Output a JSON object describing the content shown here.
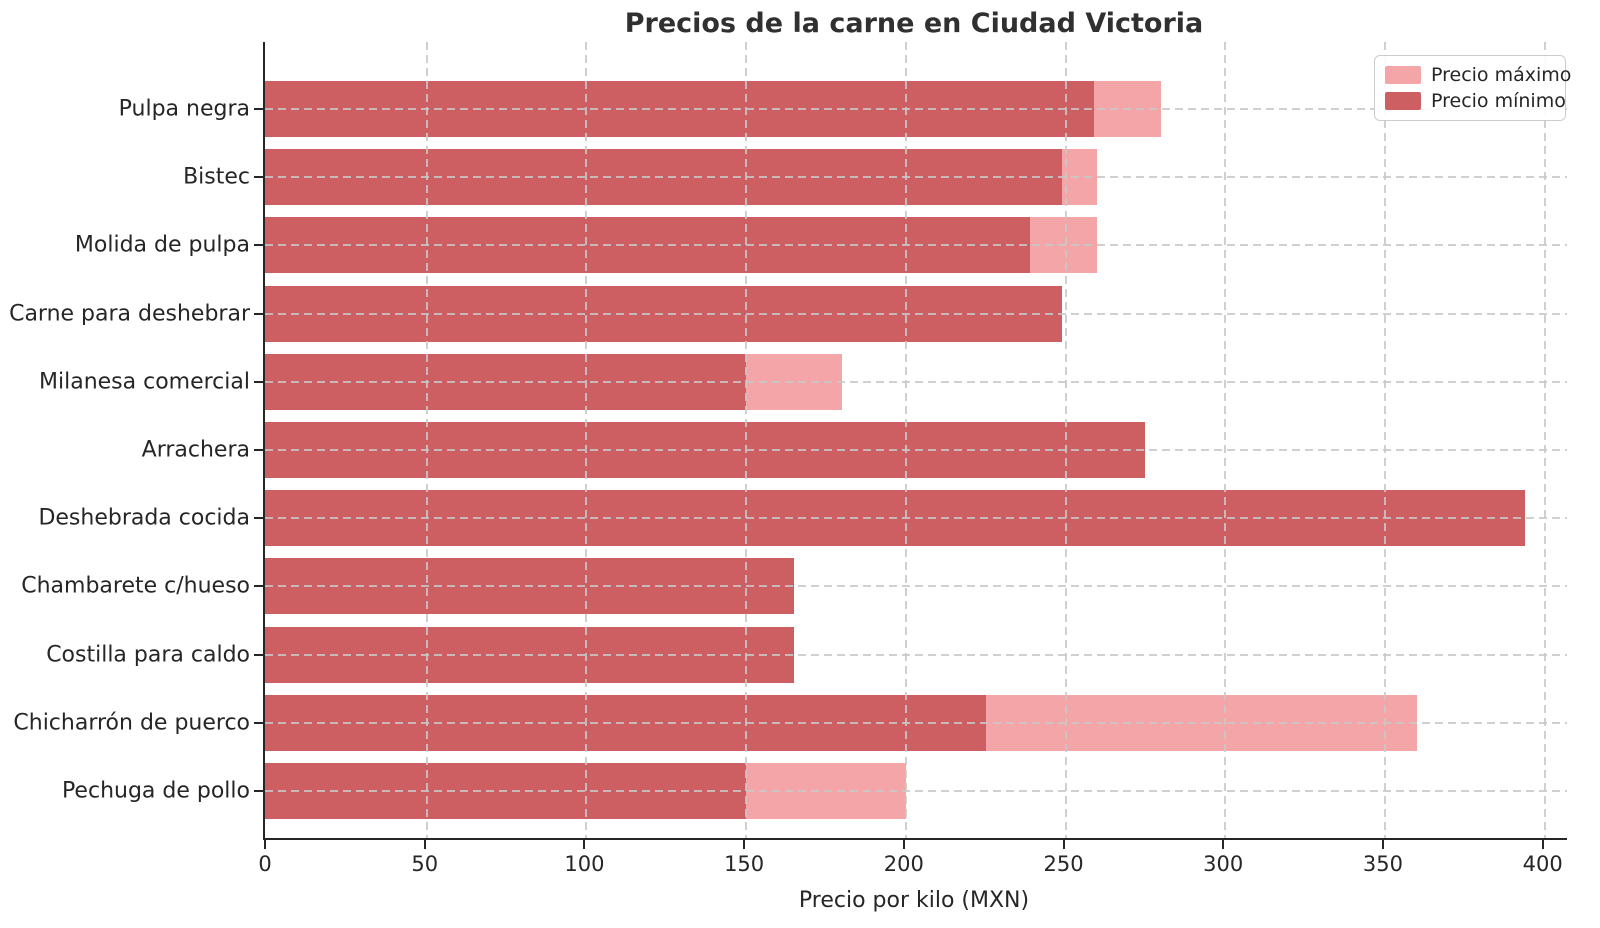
{
  "title": "Precios de la carne en Ciudad Victoria",
  "xlabel": "Precio por kilo (MXN)",
  "legend": {
    "max_label": "Precio máximo",
    "min_label": "Precio mínimo"
  },
  "colors": {
    "min_bar": "#cd5f63",
    "max_bar": "#f4a5a7",
    "grid": "#c8c8c8",
    "axis": "#262626",
    "text": "#262626"
  },
  "chart_data": {
    "type": "bar",
    "orientation": "horizontal",
    "title": "Precios de la carne en Ciudad Victoria",
    "xlabel": "Precio por kilo (MXN)",
    "ylabel": "",
    "categories": [
      "Pulpa negra",
      "Bistec",
      "Molida de pulpa",
      "Carne para deshebrar",
      "Milanesa comercial",
      "Arrachera",
      "Deshebrada cocida",
      "Chambarete c/hueso",
      "Costilla para caldo",
      "Chicharrón de puerco",
      "Pechuga de pollo"
    ],
    "series": [
      {
        "name": "Precio máximo",
        "color": "#f4a5a7",
        "values": [
          280,
          260,
          260,
          249,
          180,
          275,
          394,
          165,
          165,
          360,
          200
        ]
      },
      {
        "name": "Precio mínimo",
        "color": "#cd5f63",
        "values": [
          259,
          249,
          239,
          249,
          150,
          275,
          394,
          165,
          165,
          225,
          150
        ]
      }
    ],
    "xlim": [
      0,
      407
    ],
    "xticks": [
      0,
      50,
      100,
      150,
      200,
      250,
      300,
      350,
      400
    ],
    "grid": true,
    "grid_style": "dashed",
    "legend_position": "upper right"
  }
}
